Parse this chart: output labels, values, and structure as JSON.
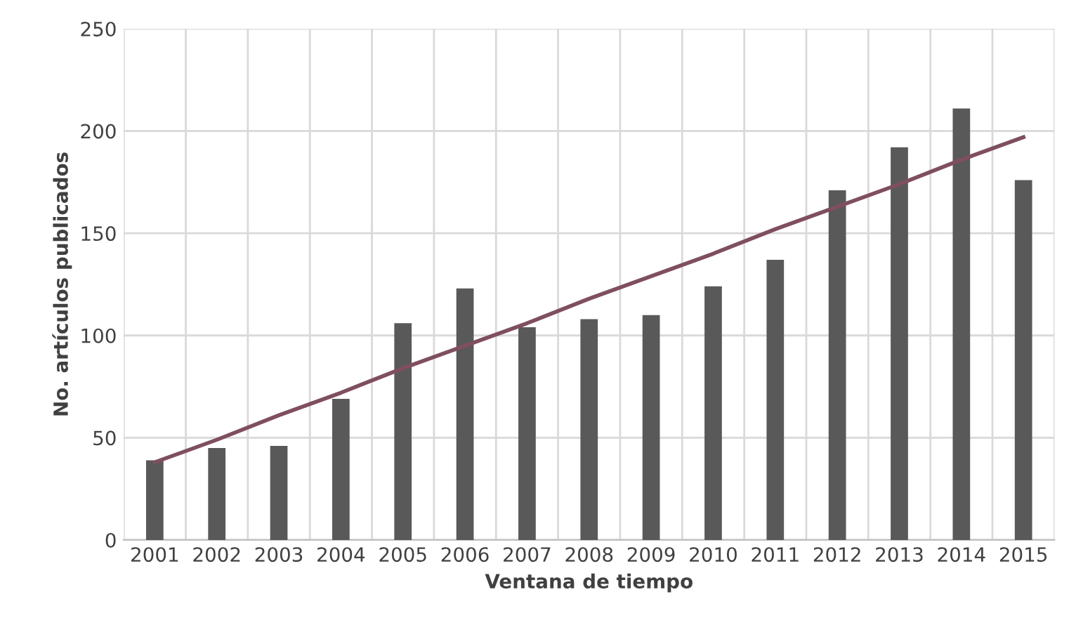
{
  "chart_data": {
    "type": "bar",
    "xlabel": "Ventana de tiempo",
    "ylabel": "No. artículos publicados",
    "categories": [
      "2001",
      "2002",
      "2003",
      "2004",
      "2005",
      "2006",
      "2007",
      "2008",
      "2009",
      "2010",
      "2011",
      "2012",
      "2013",
      "2014",
      "2015"
    ],
    "series": [
      {
        "color": "#595959",
        "values": [
          39,
          45,
          46,
          69,
          106,
          123,
          104,
          108,
          110,
          124,
          137,
          171,
          192,
          211,
          176
        ]
      },
      {
        "type": "line",
        "color": "#7f4f5f",
        "values": [
          38,
          49,
          61,
          72,
          84,
          95,
          106,
          118,
          129,
          140,
          152,
          163,
          174,
          186,
          197
        ]
      }
    ],
    "ylim": [
      0,
      250
    ],
    "yticks": [
      0,
      50,
      100,
      150,
      200,
      250
    ],
    "grid": true,
    "legend": false
  }
}
